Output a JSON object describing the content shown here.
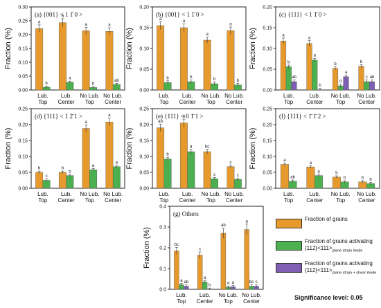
{
  "figure": {
    "colors": {
      "grains": "#E69A2E",
      "plane_strain": "#4CAF50",
      "plane_shear": "#7F5FB3"
    },
    "ylabel": "Fraction (%)",
    "significance": "Significance level: 0.05",
    "legend": [
      {
        "key": "grains",
        "line1": "Fraction of grains",
        "line2": "",
        "sub": ""
      },
      {
        "key": "plane_strain",
        "line1": "Fraction of grains activating",
        "line2": "{112}<111>",
        "sub": "plane strain mode"
      },
      {
        "key": "plane_shear",
        "line1": "Fraction of grains activating",
        "line2": "{112}<111>",
        "sub": "plane strain + shear mode"
      }
    ]
  },
  "chart_data": [
    {
      "type": "bar",
      "title": "(a) {001} < 1 1̄ 0 >",
      "ylabel": "Fraction (%)",
      "ylim": [
        0,
        0.3
      ],
      "yticks": [
        "0.00",
        "0.05",
        "0.10",
        "0.15",
        "0.20",
        "0.25",
        "0.30"
      ],
      "categories": [
        "Lub. Top",
        "Lub. Center",
        "No Lub. Top",
        "No Lub. Center"
      ],
      "series": [
        {
          "name": "Fraction of grains",
          "values": [
            0.222,
            0.243,
            0.214,
            0.212
          ],
          "letters": [
            "a",
            "a",
            "a",
            "a"
          ]
        },
        {
          "name": "Fraction of grains activating {112}<111> plane strain mode",
          "values": [
            0.01,
            0.028,
            0.009,
            0.02
          ],
          "letters": [
            "b",
            "a",
            "b",
            "ab"
          ]
        }
      ]
    },
    {
      "type": "bar",
      "title": "(b) {001} < 1 1̄ 0 >",
      "ylabel": "Fraction (%)",
      "ylim": [
        0,
        0.2
      ],
      "yticks": [
        "0.00",
        "0.05",
        "0.10",
        "0.15",
        "0.20"
      ],
      "categories": [
        "Lub. Top",
        "Lub. Center",
        "No Lub. Top",
        "No Lub. Center"
      ],
      "series": [
        {
          "name": "Fraction of grains",
          "values": [
            0.155,
            0.15,
            0.12,
            0.143
          ],
          "letters": [
            "a",
            "a",
            "a",
            "a"
          ]
        },
        {
          "name": "Fraction of grains activating {112}<111> plane strain mode",
          "values": [
            0.018,
            0.02,
            0.015,
            0.012
          ],
          "letters": [
            "b",
            "b",
            "b",
            "b"
          ]
        }
      ]
    },
    {
      "type": "bar",
      "title": "(c) {111} < 1 1̄ 0 >",
      "ylabel": "Fraction (%)",
      "ylim": [
        0,
        0.2
      ],
      "yticks": [
        "0.00",
        "0.05",
        "0.10",
        "0.15",
        "0.20"
      ],
      "categories": [
        "Lub. Top",
        "Lub. Center",
        "No Lub. Top",
        "No Lub. Center"
      ],
      "series": [
        {
          "name": "Fraction of grains",
          "values": [
            0.118,
            0.112,
            0.052,
            0.057
          ],
          "letters": [
            "a",
            "a",
            "b",
            "b"
          ]
        },
        {
          "name": "Fraction of grains activating {112}<111> plane strain mode",
          "values": [
            0.056,
            0.072,
            0.01,
            0.02
          ],
          "letters": [
            "b",
            "a",
            "d",
            "c"
          ]
        },
        {
          "name": "Fraction of grains activating {112}<111> plane strain + shear mode",
          "values": [
            0.02,
            0.0,
            0.032,
            0.02
          ],
          "letters": [
            "ab",
            "b",
            "a",
            "ab"
          ]
        }
      ]
    },
    {
      "type": "bar",
      "title": "(d) {111} < 1 2̄ 1 >",
      "ylabel": "Fraction (%)",
      "ylim": [
        0,
        0.25
      ],
      "yticks": [
        "0.00",
        "0.05",
        "0.10",
        "0.15",
        "0.20",
        "0.25"
      ],
      "categories": [
        "Lub. Top",
        "Lub. Center",
        "No Lub. Top",
        "No Lub. Center"
      ],
      "series": [
        {
          "name": "Fraction of grains",
          "values": [
            0.05,
            0.05,
            0.188,
            0.208
          ],
          "letters": [
            "b",
            "b",
            "a",
            "a"
          ]
        },
        {
          "name": "Fraction of grains activating {112}<111> plane strain mode",
          "values": [
            0.025,
            0.04,
            0.058,
            0.068
          ],
          "letters": [
            "c",
            "b",
            "a",
            "a"
          ]
        }
      ]
    },
    {
      "type": "bar",
      "title": "(e) {111} < 0 1̄ 1 >",
      "ylabel": "Fraction (%)",
      "ylim": [
        0,
        0.25
      ],
      "yticks": [
        "0.00",
        "0.05",
        "0.10",
        "0.15",
        "0.20",
        "0.25"
      ],
      "categories": [
        "Lub. Top",
        "Lub. Center",
        "No Lub. Top",
        "No Lub. Center"
      ],
      "series": [
        {
          "name": "Fraction of grains",
          "values": [
            0.19,
            0.205,
            0.115,
            0.068
          ],
          "letters": [
            "ab",
            "a",
            "bc",
            "c"
          ]
        },
        {
          "name": "Fraction of grains activating {112}<111> plane strain mode",
          "values": [
            0.092,
            0.115,
            0.03,
            0.028
          ],
          "letters": [
            "b",
            "a",
            "c",
            "c"
          ]
        }
      ]
    },
    {
      "type": "bar",
      "title": "(f) {111} < 1̄ 1̄ 2 >",
      "ylabel": "Fraction (%)",
      "ylim": [
        0,
        0.25
      ],
      "yticks": [
        "0.00",
        "0.05",
        "0.10",
        "0.15",
        "0.20",
        "0.25"
      ],
      "categories": [
        "Lub. Top",
        "Lub. Center",
        "No Lub. Top",
        "No Lub. Center"
      ],
      "series": [
        {
          "name": "Fraction of grains",
          "values": [
            0.075,
            0.067,
            0.035,
            0.02
          ],
          "letters": [
            "a",
            "a",
            "b",
            "b"
          ]
        },
        {
          "name": "Fraction of grains activating {112}<111> plane strain mode",
          "values": [
            0.022,
            0.04,
            0.02,
            0.015
          ],
          "letters": [
            "ab",
            "a",
            "b",
            "b"
          ]
        }
      ]
    },
    {
      "type": "bar",
      "title": "(g) Others",
      "ylabel": "Fraction (%)",
      "ylim": [
        0,
        0.4
      ],
      "yticks": [
        "0.0",
        "0.1",
        "0.2",
        "0.3",
        "0.4"
      ],
      "categories": [
        "Lub. Top",
        "Lub. Center",
        "No Lub. Top",
        "No Lub. Center"
      ],
      "series": [
        {
          "name": "Fraction of grains",
          "values": [
            0.185,
            0.165,
            0.27,
            0.288
          ],
          "letters": [
            "bc",
            "c",
            "ab",
            "a"
          ]
        },
        {
          "name": "Fraction of grains activating {112}<111> plane strain mode",
          "values": [
            0.022,
            0.035,
            0.01,
            0.015
          ],
          "letters": [
            "a",
            "a",
            "a",
            "bc"
          ]
        },
        {
          "name": "Fraction of grains activating {112}<111> plane strain + shear mode",
          "values": [
            0.015,
            0.0,
            0.012,
            0.015
          ],
          "letters": [
            "ab",
            "b",
            "a",
            "c"
          ]
        }
      ]
    }
  ]
}
